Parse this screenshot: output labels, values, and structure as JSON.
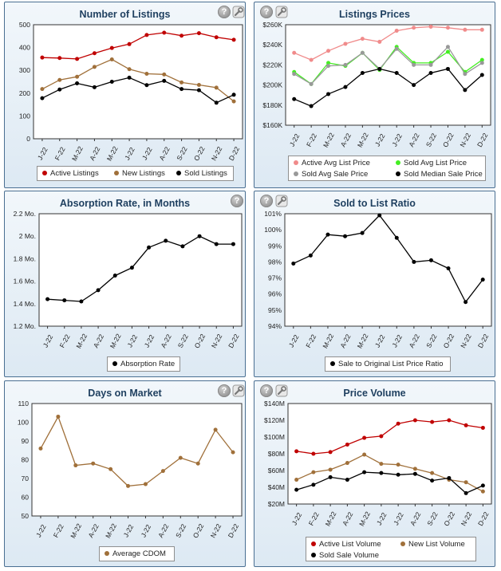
{
  "colors": {
    "red": "#c00000",
    "brown": "#a0703a",
    "black": "#000000",
    "pink": "#f08b8b",
    "green": "#44ee22",
    "gray": "#999999"
  },
  "icons": {
    "help": "help-icon",
    "settings": "wrench-settings-icon"
  },
  "chart_data": [
    {
      "id": "listings",
      "type": "line",
      "title": "Number of Listings",
      "categories": [
        "J-22",
        "F-22",
        "M-22",
        "A-22",
        "M-22",
        "J-22",
        "J-22",
        "A-22",
        "S-22",
        "O-22",
        "N-22",
        "D-22"
      ],
      "ylim": [
        0,
        500
      ],
      "yticks": [
        0,
        100,
        200,
        300,
        400,
        500
      ],
      "ytick_labels": [
        "0",
        "100",
        "200",
        "300",
        "400",
        "500"
      ],
      "series": [
        {
          "name": "Active Listings",
          "color": "#c00000",
          "values": [
            356,
            354,
            350,
            375,
            398,
            415,
            455,
            465,
            452,
            463,
            445,
            434
          ]
        },
        {
          "name": "New Listings",
          "color": "#a0703a",
          "values": [
            218,
            258,
            272,
            315,
            348,
            305,
            285,
            282,
            247,
            236,
            224,
            164
          ]
        },
        {
          "name": "Sold Listings",
          "color": "#000000",
          "values": [
            178,
            216,
            243,
            226,
            250,
            268,
            235,
            254,
            218,
            213,
            158,
            193
          ]
        }
      ]
    },
    {
      "id": "prices",
      "type": "line",
      "title": "Listings Prices",
      "categories": [
        "J-22",
        "F-22",
        "M-22",
        "A-22",
        "M-22",
        "J-22",
        "J-22",
        "A-22",
        "S-22",
        "O-22",
        "N-22",
        "D-22"
      ],
      "ylim": [
        160000,
        260000
      ],
      "yticks": [
        160000,
        180000,
        200000,
        220000,
        240000,
        260000
      ],
      "ytick_labels": [
        "$160K",
        "$180K",
        "$200K",
        "$220K",
        "$240K",
        "$260K"
      ],
      "series": [
        {
          "name": "Active Avg List Price",
          "color": "#f08b8b",
          "values": [
            232000,
            225000,
            234000,
            241000,
            246000,
            243000,
            254000,
            257000,
            258000,
            257000,
            255000,
            255000
          ]
        },
        {
          "name": "Sold Avg List Price",
          "color": "#44ee22",
          "values": [
            213000,
            201000,
            222000,
            219000,
            232000,
            215000,
            238000,
            222000,
            222000,
            233000,
            213000,
            225000
          ]
        },
        {
          "name": "Sold Avg Sale Price",
          "color": "#999999",
          "values": [
            211000,
            201000,
            219000,
            220000,
            232000,
            216000,
            236000,
            220000,
            220000,
            238000,
            211000,
            222000
          ]
        },
        {
          "name": "Sold Median Sale Price",
          "color": "#000000",
          "values": [
            186000,
            179000,
            191000,
            198000,
            212000,
            216000,
            212000,
            200000,
            212000,
            216000,
            195000,
            210000
          ]
        }
      ]
    },
    {
      "id": "absorption",
      "type": "line",
      "title": "Absorption Rate, in Months",
      "categories": [
        "J-22",
        "F-22",
        "M-22",
        "A-22",
        "M-22",
        "J-22",
        "J-22",
        "A-22",
        "S-22",
        "O-22",
        "N-22",
        "D-22"
      ],
      "ylim": [
        1.2,
        2.2
      ],
      "yticks": [
        1.2,
        1.4,
        1.6,
        1.8,
        2.0,
        2.2
      ],
      "ytick_labels": [
        "1.2 Mo.",
        "1.4 Mo.",
        "1.6 Mo.",
        "1.8 Mo.",
        "2 Mo.",
        "2.2 Mo."
      ],
      "series": [
        {
          "name": "Absorption Rate",
          "color": "#000000",
          "values": [
            1.44,
            1.43,
            1.42,
            1.52,
            1.65,
            1.72,
            1.9,
            1.96,
            1.91,
            2.0,
            1.93,
            1.93
          ]
        }
      ]
    },
    {
      "id": "ratio",
      "type": "line",
      "title": "Sold to List Ratio",
      "categories": [
        "J-22",
        "F-22",
        "M-22",
        "A-22",
        "M-22",
        "J-22",
        "J-22",
        "A-22",
        "S-22",
        "O-22",
        "N-22",
        "D-22"
      ],
      "ylim": [
        94,
        101
      ],
      "yticks": [
        94,
        95,
        96,
        97,
        98,
        99,
        100,
        101
      ],
      "ytick_labels": [
        "94%",
        "95%",
        "96%",
        "97%",
        "98%",
        "99%",
        "100%",
        "101%"
      ],
      "series": [
        {
          "name": "Sale to Original List Price Ratio",
          "color": "#000000",
          "values": [
            97.9,
            98.4,
            99.7,
            99.6,
            99.8,
            100.9,
            99.5,
            98.0,
            98.1,
            97.6,
            95.5,
            96.9
          ]
        }
      ]
    },
    {
      "id": "dom",
      "type": "line",
      "title": "Days on Market",
      "categories": [
        "J-22",
        "F-22",
        "M-22",
        "A-22",
        "M-22",
        "J-22",
        "J-22",
        "A-22",
        "S-22",
        "O-22",
        "N-22",
        "D-22"
      ],
      "ylim": [
        50,
        110
      ],
      "yticks": [
        50,
        60,
        70,
        80,
        90,
        100,
        110
      ],
      "ytick_labels": [
        "50",
        "60",
        "70",
        "80",
        "90",
        "100",
        "110"
      ],
      "series": [
        {
          "name": "Average CDOM",
          "color": "#a0703a",
          "values": [
            86,
            103,
            77,
            78,
            75,
            66,
            67,
            74,
            81,
            78,
            96,
            84
          ]
        }
      ]
    },
    {
      "id": "volume",
      "type": "line",
      "title": "Price Volume",
      "categories": [
        "J-22",
        "F-22",
        "M-22",
        "A-22",
        "M-22",
        "J-22",
        "J-22",
        "A-22",
        "S-22",
        "O-22",
        "N-22",
        "D-22"
      ],
      "ylim": [
        20,
        140
      ],
      "yticks": [
        20,
        40,
        60,
        80,
        100,
        120,
        140
      ],
      "ytick_labels": [
        "$20M",
        "$40M",
        "$60M",
        "$80M",
        "$100M",
        "$120M",
        "$140M"
      ],
      "series": [
        {
          "name": "Active List Volume",
          "color": "#c00000",
          "values": [
            83,
            80,
            82,
            91,
            99,
            101,
            116,
            120,
            118,
            120,
            114,
            111
          ]
        },
        {
          "name": "New List Volume",
          "color": "#a0703a",
          "values": [
            49,
            58,
            61,
            69,
            79,
            68,
            67,
            62,
            57,
            49,
            46,
            35
          ]
        },
        {
          "name": "Sold Sale Volume",
          "color": "#000000",
          "values": [
            37,
            43,
            52,
            49,
            58,
            57,
            55,
            56,
            48,
            51,
            33,
            42
          ]
        }
      ]
    }
  ]
}
